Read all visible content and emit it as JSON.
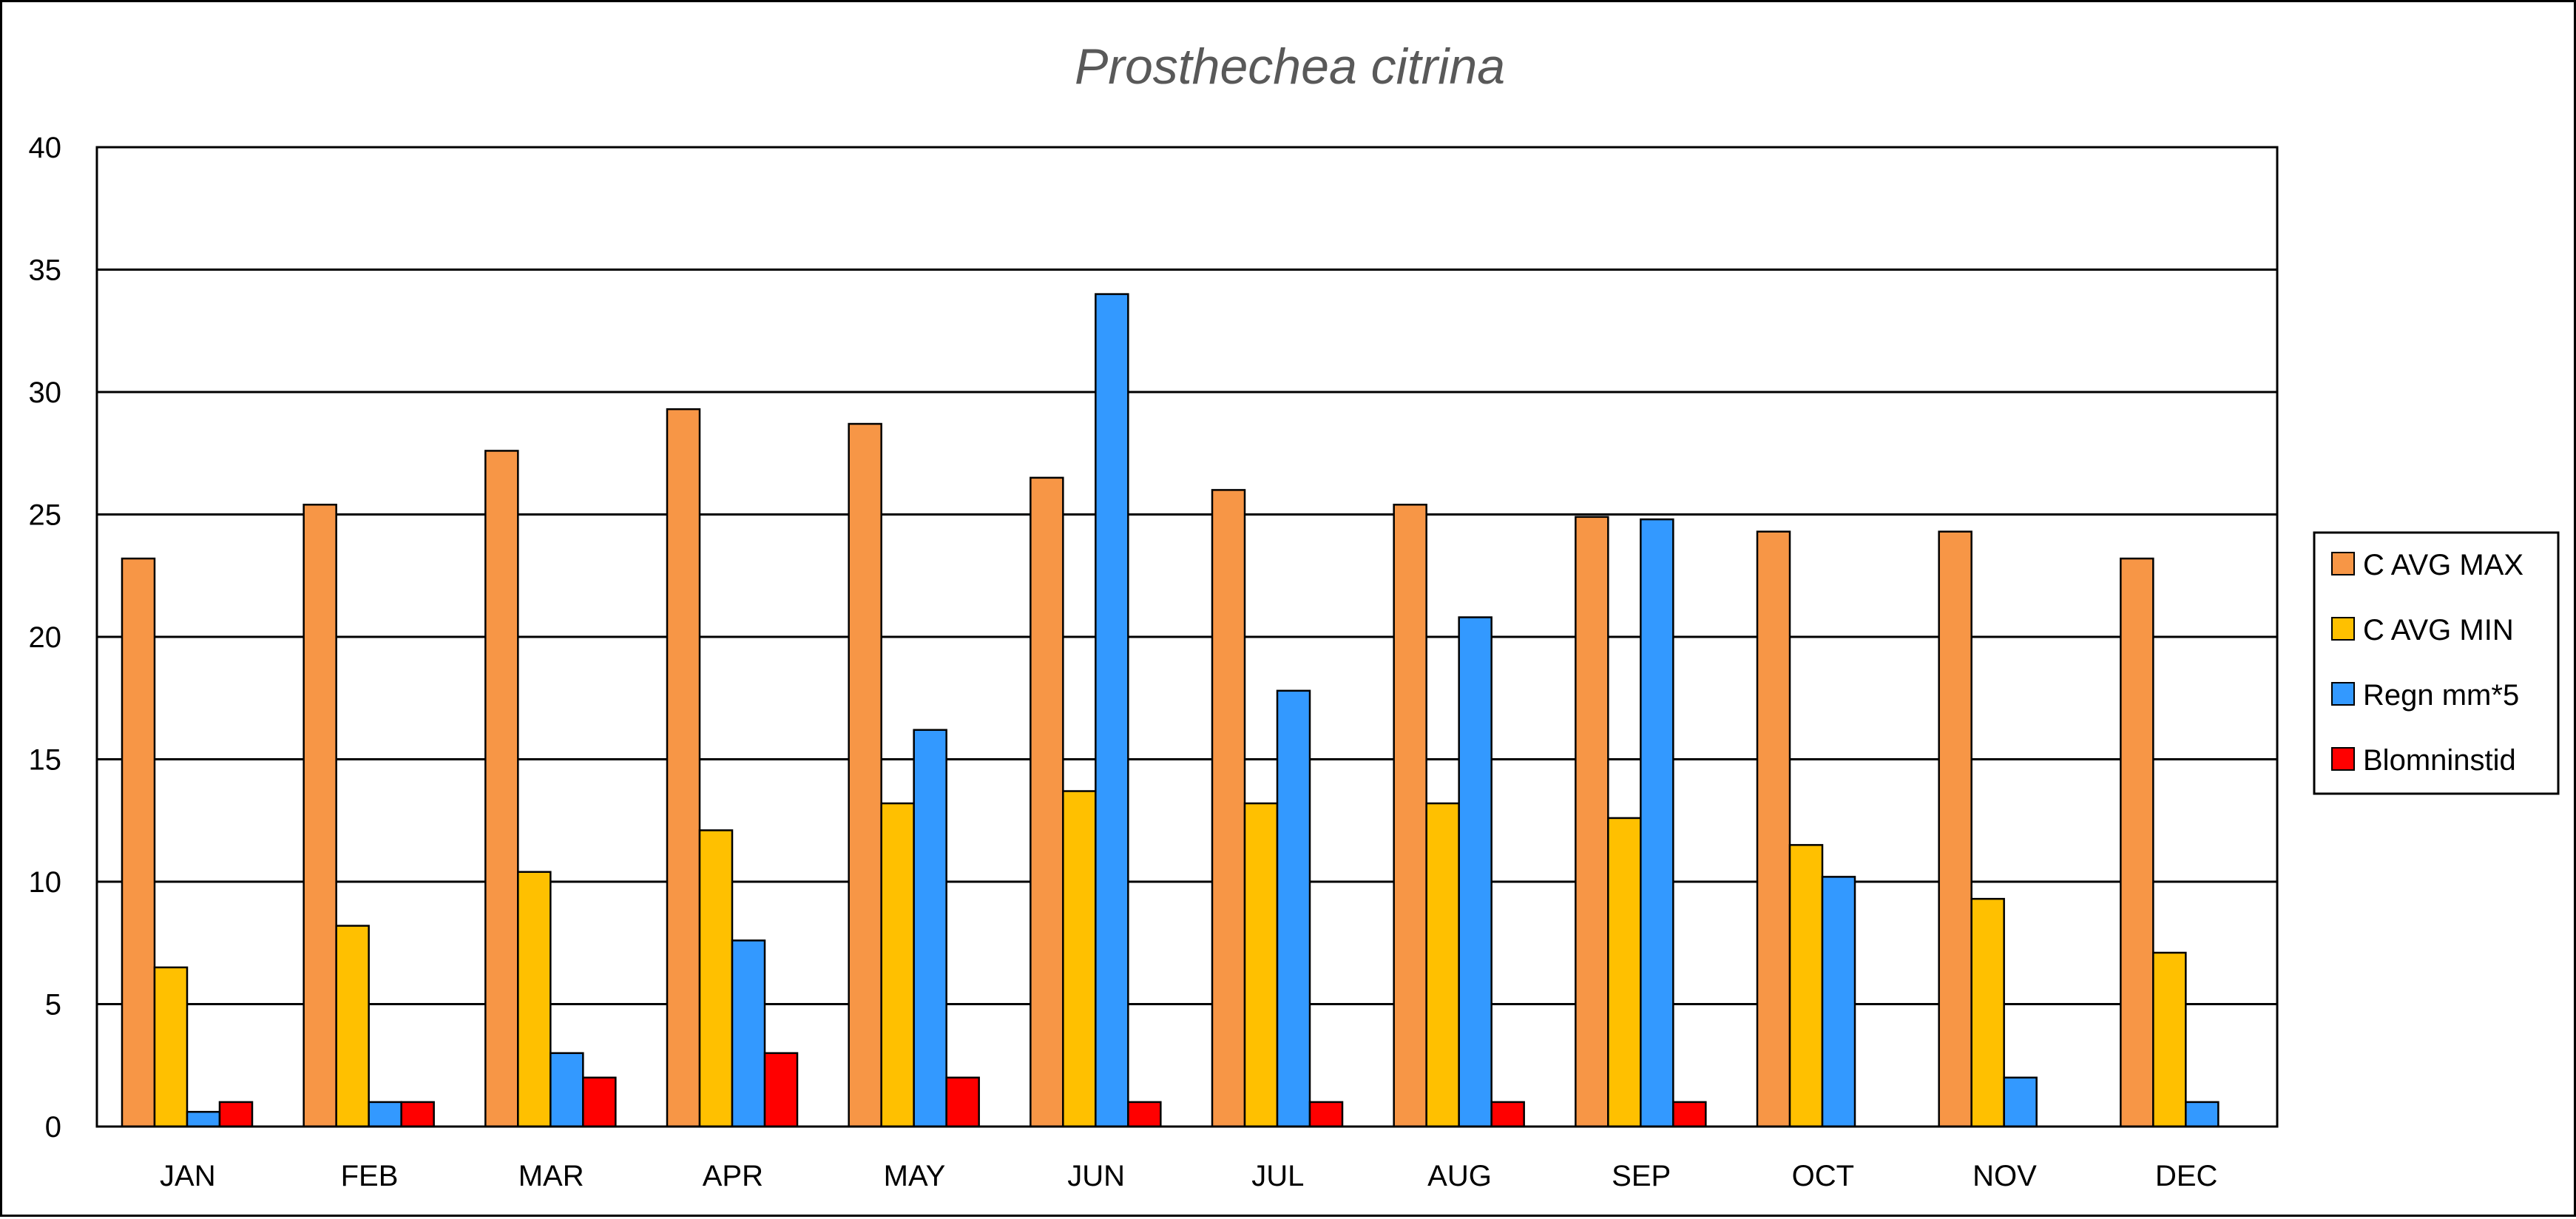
{
  "chart_data": {
    "type": "bar",
    "title": "Prosthechea citrina",
    "xlabel": "",
    "ylabel": "",
    "categories": [
      "JAN",
      "FEB",
      "MAR",
      "APR",
      "MAY",
      "JUN",
      "JUL",
      "AUG",
      "SEP",
      "OCT",
      "NOV",
      "DEC"
    ],
    "ylim": [
      0,
      40
    ],
    "yticks": [
      0,
      5,
      10,
      15,
      20,
      25,
      30,
      35,
      40
    ],
    "grid": true,
    "legend_position": "right",
    "series": [
      {
        "name": "C AVG MAX",
        "color": "#F79646",
        "values": [
          23.2,
          25.4,
          27.6,
          29.3,
          28.7,
          26.5,
          26.0,
          25.4,
          24.9,
          24.3,
          24.3,
          23.2
        ]
      },
      {
        "name": "C AVG MIN",
        "color": "#FFC000",
        "values": [
          6.5,
          8.2,
          10.4,
          12.1,
          13.2,
          13.7,
          13.2,
          13.2,
          12.6,
          11.5,
          9.3,
          7.1
        ]
      },
      {
        "name": "Regn mm*5",
        "color": "#3399FF",
        "values": [
          0.6,
          1.0,
          3.0,
          7.6,
          16.2,
          34.0,
          17.8,
          20.8,
          24.8,
          10.2,
          2.0,
          1.0
        ]
      },
      {
        "name": "Blomninstid",
        "color": "#FF0000",
        "values": [
          1,
          1,
          2,
          3,
          2,
          1,
          1,
          1,
          1,
          0,
          0,
          0
        ]
      }
    ]
  }
}
